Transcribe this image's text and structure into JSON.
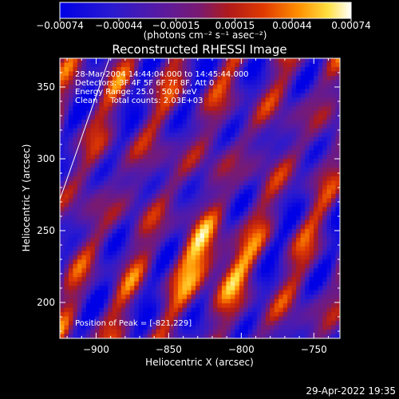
{
  "chart_data": {
    "type": "heatmap",
    "title": "Reconstructed RHESSI Image",
    "xlabel": "Heliocentric X (arcsec)",
    "ylabel": "Heliocentric Y (arcsec)",
    "xlim": [
      -925,
      -732
    ],
    "ylim": [
      175,
      370
    ],
    "x_ticks": [
      -900,
      -850,
      -800,
      -750
    ],
    "x_tick_labels": [
      "−900",
      "−850",
      "−800",
      "−750"
    ],
    "y_ticks": [
      200,
      250,
      300,
      350
    ],
    "y_tick_labels": [
      "200",
      "250",
      "300",
      "350"
    ],
    "colorbar": {
      "range": [
        -0.00074,
        0.00074
      ],
      "ticks": [
        -0.00074,
        -0.00044,
        -0.00015,
        0.00015,
        0.00044,
        0.00074
      ],
      "tick_labels": [
        "−0.00074",
        "−0.00044",
        "−0.00015",
        "0.00015",
        "0.00044",
        "0.00074"
      ],
      "unit_label": "(photons cm⁻² s⁻¹ asec⁻²)",
      "colormap": "blue-purple-red-orange-yellow-white"
    },
    "info_lines": [
      "28-Mar-2004 14:44:04.000 to 14:45:44.000",
      "Detectors: 3F 4F 5F 6F 7F 8F, Att 0",
      "Energy Range: 25.0 - 50.0 keV",
      "Clean     Total counts: 2.03E+03"
    ],
    "peak_label": "Position of Peak = [-821,229]",
    "peak_position": [
      -821,
      229
    ],
    "limb_line_visible": true,
    "grid": false
  },
  "footer": {
    "timestamp": "29-Apr-2022 19:35"
  },
  "colors": {
    "background": "#000000",
    "foreground": "#ffffff"
  }
}
